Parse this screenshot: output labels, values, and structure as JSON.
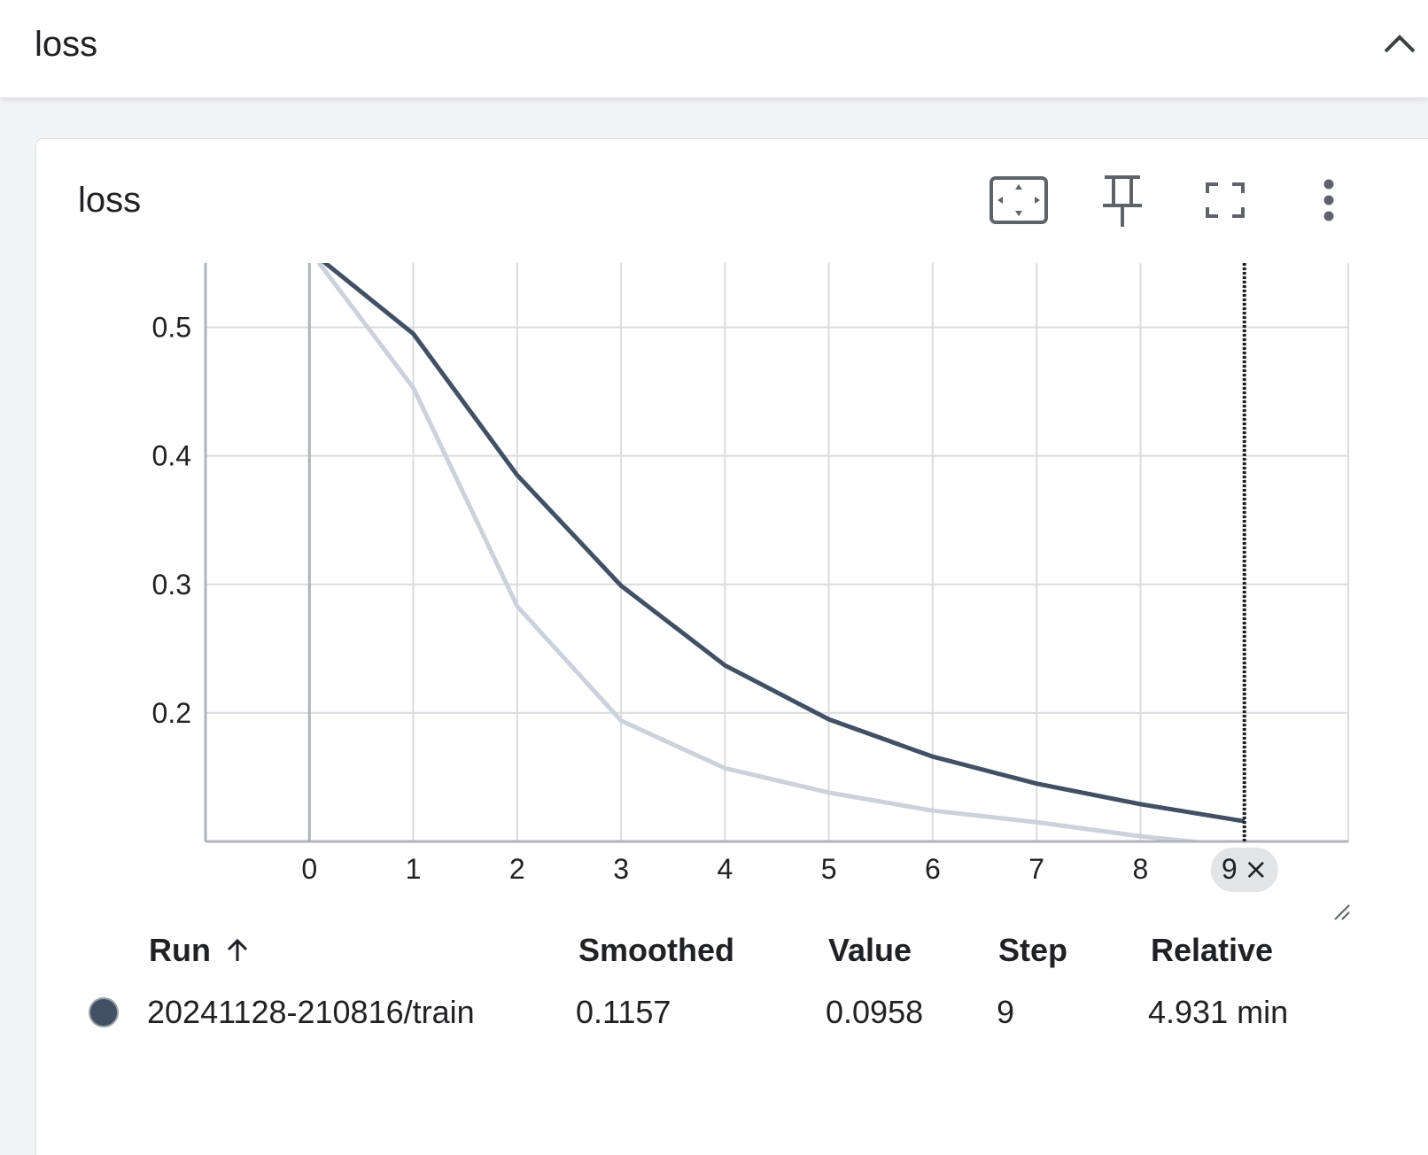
{
  "group": {
    "title": "loss",
    "collapse_icon": "chevron-up-icon"
  },
  "card": {
    "title": "loss",
    "toolbar": {
      "fit_icon": "fit-to-data-icon",
      "pin_icon": "pin-icon",
      "fullscreen_icon": "fullscreen-icon",
      "more_icon": "more-vert-icon"
    }
  },
  "chart_data": {
    "type": "line",
    "title": "",
    "xlabel": "",
    "ylabel": "",
    "x_ticks": [
      "0",
      "1",
      "2",
      "3",
      "4",
      "5",
      "6",
      "7",
      "8",
      "9"
    ],
    "y_ticks": [
      "0.2",
      "0.3",
      "0.4",
      "0.5"
    ],
    "xlim": [
      -1,
      10
    ],
    "ylim": [
      0.1,
      0.55
    ],
    "grid": true,
    "series": [
      {
        "name": "20241128-210816/train",
        "role": "smoothed",
        "color": "#425066",
        "x": [
          0,
          1,
          2,
          3,
          4,
          5,
          6,
          7,
          8,
          9
        ],
        "y": [
          0.56,
          0.495,
          0.385,
          0.299,
          0.237,
          0.195,
          0.166,
          0.145,
          0.129,
          0.1157
        ]
      },
      {
        "name": "20241128-210816/train",
        "role": "raw",
        "color": "#cdd1dc",
        "x": [
          0,
          1,
          2,
          3,
          4,
          5,
          6,
          7,
          8,
          9
        ],
        "y": [
          0.56,
          0.453,
          0.283,
          0.194,
          0.157,
          0.138,
          0.124,
          0.115,
          0.104,
          0.0958
        ]
      }
    ],
    "hover_step": "9",
    "hover_step_close": "×",
    "hover_x": 9
  },
  "tooltip_table": {
    "headers": {
      "run": "Run",
      "run_sort_icon": "arrow-up-icon",
      "smoothed": "Smoothed",
      "value": "Value",
      "step": "Step",
      "relative": "Relative"
    },
    "rows": [
      {
        "color": "#425066",
        "run": "20241128-210816/train",
        "smoothed": "0.1157",
        "value": "0.0958",
        "step": "9",
        "relative": "4.931 min"
      }
    ]
  }
}
